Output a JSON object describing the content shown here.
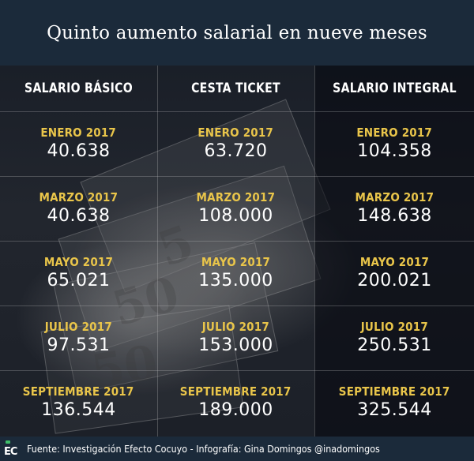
{
  "title": "Quinto aumento salarial en nueve meses",
  "footer": {
    "logo": "EC",
    "text": "Fuente: Investigación Efecto Cocuyo - Infografía: Gina Domingos @inadomingos"
  },
  "colors": {
    "background": "#15202c",
    "title_bar": "#1b2a3a",
    "month_label": "#e9c54a",
    "value_text": "#ffffff",
    "logo_green": "#3fbf6a"
  },
  "chart_data": {
    "type": "table",
    "columns": [
      "SALARIO BÁSICO",
      "CESTA TICKET",
      "SALARIO INTEGRAL"
    ],
    "rows": [
      {
        "cells": [
          {
            "month": "ENERO 2017",
            "value": "40.638"
          },
          {
            "month": "ENERO 2017",
            "value": "63.720"
          },
          {
            "month": "ENERO 2017",
            "value": "104.358"
          }
        ]
      },
      {
        "cells": [
          {
            "month": "MARZO 2017",
            "value": "40.638"
          },
          {
            "month": "MARZO 2017",
            "value": "108.000"
          },
          {
            "month": "MARZO 2017",
            "value": "148.638"
          }
        ]
      },
      {
        "cells": [
          {
            "month": "MAYO 2017",
            "value": "65.021"
          },
          {
            "month": "MAYO 2017",
            "value": "135.000"
          },
          {
            "month": "MAYO 2017",
            "value": "200.021"
          }
        ]
      },
      {
        "cells": [
          {
            "month": "JULIO 2017",
            "value": "97.531"
          },
          {
            "month": "JULIO 2017",
            "value": "153.000"
          },
          {
            "month": "JULIO 2017",
            "value": "250.531"
          }
        ]
      },
      {
        "cells": [
          {
            "month": "SEPTIEMBRE 2017",
            "value": "136.544"
          },
          {
            "month": "SEPTIEMBRE 2017",
            "value": "189.000"
          },
          {
            "month": "SEPTIEMBRE 2017",
            "value": "325.544"
          }
        ]
      }
    ]
  }
}
